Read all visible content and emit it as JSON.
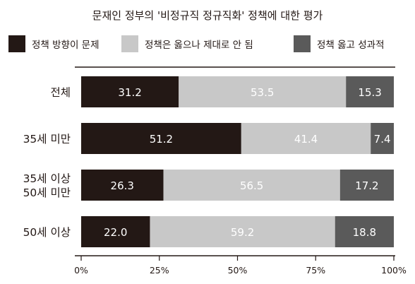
{
  "chart_data": {
    "type": "bar",
    "orientation": "horizontal",
    "stacked": true,
    "title": "문재인 정부의 '비정규직 정규직화' 정책에 대한 평가",
    "legend_position": "top",
    "categories": [
      "전체",
      "35세 미만",
      "35세 이상\n50세 미만",
      "50세 이상"
    ],
    "series": [
      {
        "name": "정책 방향이 문제",
        "color": "#231815",
        "label_color": "#ffffff",
        "values": [
          31.2,
          51.2,
          26.3,
          22.0
        ],
        "labels": [
          "31.2",
          "51.2",
          "26.3",
          "22.0"
        ]
      },
      {
        "name": "정책은 옳으나 제대로 안 됨",
        "color": "#c8c8c8",
        "label_color": "#ffffff",
        "values": [
          53.5,
          41.4,
          56.5,
          59.2
        ],
        "labels": [
          "53.5",
          "41.4",
          "56.5",
          "59.2"
        ]
      },
      {
        "name": "정책 옳고 성과적",
        "color": "#5a5a5a",
        "label_color": "#ffffff",
        "values": [
          15.3,
          7.4,
          17.2,
          18.8
        ],
        "labels": [
          "15.3",
          "7.4",
          "17.2",
          "18.8"
        ]
      }
    ],
    "xlim": [
      0,
      100
    ],
    "xticks": [
      0,
      25,
      50,
      75,
      100
    ],
    "xtick_labels": [
      "0%",
      "25%",
      "50%",
      "75%",
      "100%"
    ],
    "grid": false,
    "xlabel": "",
    "ylabel": ""
  }
}
